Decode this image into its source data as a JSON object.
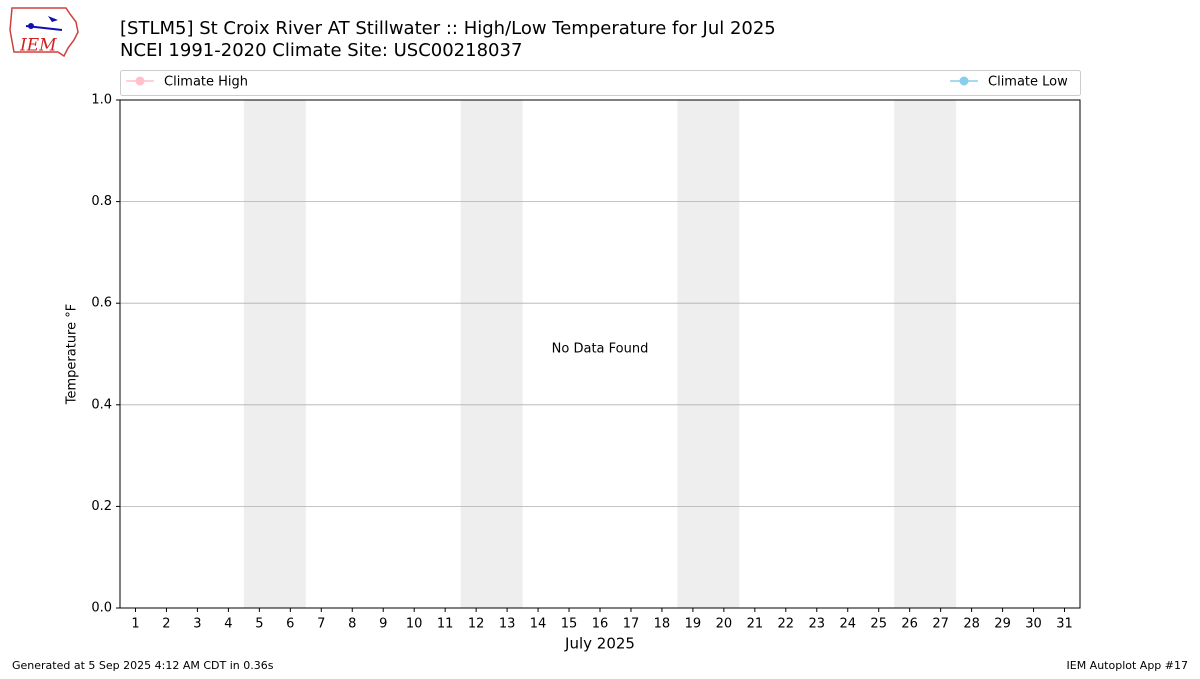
{
  "logo_text": "IEM",
  "footer": {
    "left": "Generated at 5 Sep 2025 4:12 AM CDT in 0.36s",
    "right": "IEM Autoplot App #17"
  },
  "chart_data": {
    "type": "line",
    "title": "[STLM5] St Croix River  AT Stillwater :: High/Low Temperature for Jul 2025",
    "subtitle": "NCEI 1991-2020 Climate Site: USC00218037",
    "xlabel": "July 2025",
    "ylabel": "Temperature °F",
    "annotation": "No Data Found",
    "x": [
      1,
      2,
      3,
      4,
      5,
      6,
      7,
      8,
      9,
      10,
      11,
      12,
      13,
      14,
      15,
      16,
      17,
      18,
      19,
      20,
      21,
      22,
      23,
      24,
      25,
      26,
      27,
      28,
      29,
      30,
      31
    ],
    "series": [
      {
        "name": "Climate High",
        "color": "#ffc0cb",
        "values": [
          null,
          null,
          null,
          null,
          null,
          null,
          null,
          null,
          null,
          null,
          null,
          null,
          null,
          null,
          null,
          null,
          null,
          null,
          null,
          null,
          null,
          null,
          null,
          null,
          null,
          null,
          null,
          null,
          null,
          null,
          null
        ]
      },
      {
        "name": "Climate Low",
        "color": "#87ceeb",
        "values": [
          null,
          null,
          null,
          null,
          null,
          null,
          null,
          null,
          null,
          null,
          null,
          null,
          null,
          null,
          null,
          null,
          null,
          null,
          null,
          null,
          null,
          null,
          null,
          null,
          null,
          null,
          null,
          null,
          null,
          null,
          null
        ]
      }
    ],
    "xlim": [
      0.5,
      31.5
    ],
    "xticks": [
      1,
      2,
      3,
      4,
      5,
      6,
      7,
      8,
      9,
      10,
      11,
      12,
      13,
      14,
      15,
      16,
      17,
      18,
      19,
      20,
      21,
      22,
      23,
      24,
      25,
      26,
      27,
      28,
      29,
      30,
      31
    ],
    "ylim": [
      0,
      1
    ],
    "yticks": [
      {
        "value": 0,
        "label": "0.0"
      },
      {
        "value": 0.2,
        "label": "0.2"
      },
      {
        "value": 0.4,
        "label": "0.4"
      },
      {
        "value": 0.6,
        "label": "0.6"
      },
      {
        "value": 0.8,
        "label": "0.8"
      },
      {
        "value": 1,
        "label": "1.0"
      }
    ],
    "grid": true
  }
}
